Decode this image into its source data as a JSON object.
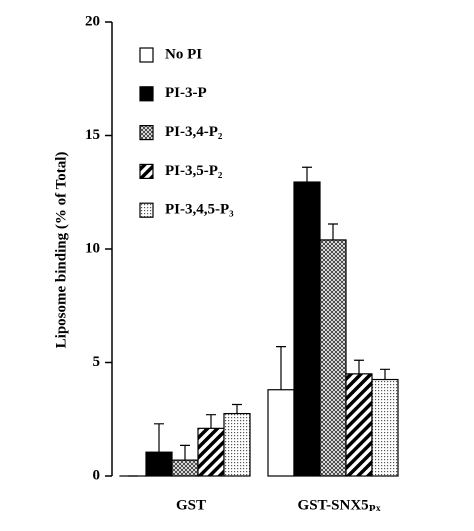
{
  "chart_data": {
    "type": "bar",
    "y_label": "Liposome binding (% of Total)",
    "categories": [
      "GST",
      "GST-SNX5ₚₓ"
    ],
    "series": [
      {
        "name": "No PI",
        "pattern": "white",
        "values": [
          0,
          3.8
        ],
        "errors": [
          0,
          1.9
        ]
      },
      {
        "name": "PI-3-P",
        "pattern": "black",
        "values": [
          1.05,
          12.95
        ],
        "errors": [
          1.25,
          0.65
        ]
      },
      {
        "name": "PI-3,4-P₂",
        "pattern": "crosshatch",
        "values": [
          0.7,
          10.4
        ],
        "errors": [
          0.65,
          0.7
        ]
      },
      {
        "name": "PI-3,5-P₂",
        "pattern": "stripes",
        "values": [
          2.1,
          4.5
        ],
        "errors": [
          0.6,
          0.6
        ]
      },
      {
        "name": "PI-3,4,5-P₃",
        "pattern": "dots",
        "values": [
          2.75,
          4.25
        ],
        "errors": [
          0.4,
          0.45
        ]
      }
    ],
    "ylim": [
      0,
      20
    ],
    "yticks": [
      0,
      5,
      10,
      15,
      20
    ]
  }
}
